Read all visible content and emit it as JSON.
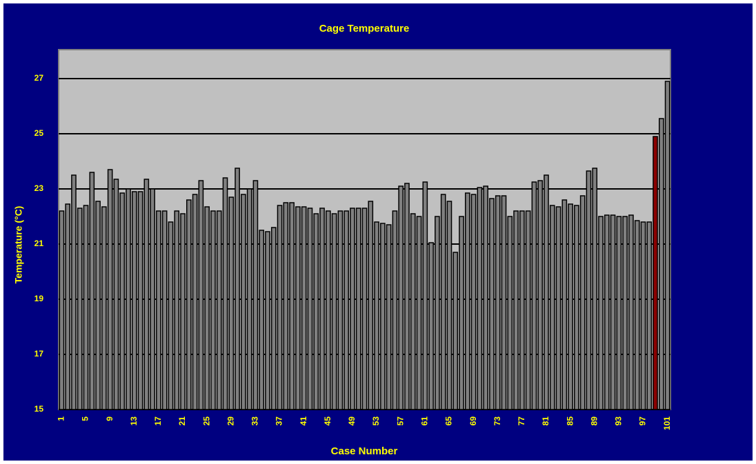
{
  "chart_data": {
    "type": "bar",
    "title": "Cage Temperature",
    "x_label": "Case Number",
    "y_label": "Temperature (°C)",
    "categories": [
      "1",
      null,
      null,
      null,
      "5",
      null,
      null,
      null,
      "9",
      null,
      null,
      null,
      "13",
      null,
      null,
      null,
      "17",
      null,
      null,
      null,
      "21",
      null,
      null,
      null,
      "25",
      null,
      null,
      null,
      "29",
      null,
      null,
      null,
      "33",
      null,
      null,
      null,
      "37",
      null,
      null,
      null,
      "41",
      null,
      null,
      null,
      "45",
      null,
      null,
      null,
      "49",
      null,
      null,
      null,
      "53",
      null,
      null,
      null,
      "57",
      null,
      null,
      null,
      "61",
      null,
      null,
      null,
      "65",
      null,
      null,
      null,
      "69",
      null,
      null,
      null,
      "73",
      null,
      null,
      null,
      "77",
      null,
      null,
      null,
      "81",
      null,
      null,
      null,
      "85",
      null,
      null,
      null,
      "89",
      null,
      null,
      null,
      "93",
      null,
      null,
      null,
      "97",
      null,
      null,
      null,
      "101"
    ],
    "values": [
      22.2,
      22.45,
      23.5,
      22.3,
      22.4,
      23.6,
      22.55,
      22.35,
      23.7,
      23.35,
      22.85,
      23.0,
      22.9,
      22.9,
      23.35,
      23.0,
      22.2,
      22.2,
      21.8,
      22.2,
      22.1,
      22.6,
      22.8,
      23.3,
      22.35,
      22.2,
      22.2,
      23.4,
      22.7,
      23.75,
      22.8,
      23.0,
      23.3,
      21.5,
      21.45,
      21.6,
      22.4,
      22.5,
      22.5,
      22.35,
      22.35,
      22.3,
      22.1,
      22.3,
      22.2,
      22.1,
      22.2,
      22.2,
      22.3,
      22.3,
      22.3,
      22.55,
      21.8,
      21.75,
      21.7,
      22.2,
      23.1,
      23.2,
      22.1,
      22.0,
      23.25,
      21.05,
      22.0,
      22.8,
      22.55,
      20.7,
      22.0,
      22.85,
      22.8,
      23.05,
      23.1,
      22.65,
      22.75,
      22.75,
      22.0,
      22.2,
      22.2,
      22.2,
      23.25,
      23.3,
      23.5,
      22.4,
      22.35,
      22.6,
      22.45,
      22.4,
      22.75,
      23.65,
      23.75,
      22.0,
      22.05,
      22.05,
      22.0,
      22.0,
      22.05,
      21.85,
      21.8,
      21.8,
      24.9,
      25.55,
      26.9
    ],
    "color": "#808080",
    "highlight_color": "#8b0000",
    "highlight_index": 98,
    "ylim": [
      15,
      28.05
    ],
    "yticks": [
      15,
      17,
      19,
      21,
      23,
      25,
      27
    ],
    "grid": true,
    "background": "#000080",
    "plot_background": "#c0c0c0",
    "text_color": "#ffff00"
  }
}
